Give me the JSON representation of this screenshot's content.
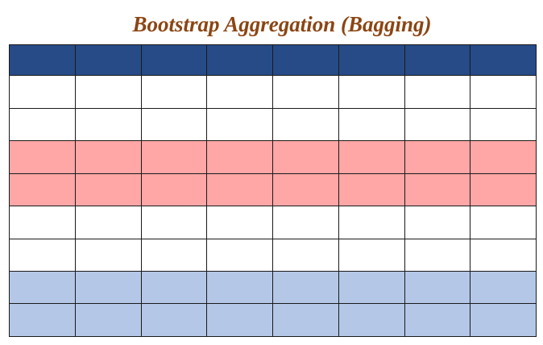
{
  "title": {
    "text": "Bootstrap Aggregation (Bagging)",
    "color": "#8B4513"
  },
  "grid": {
    "columns": 8,
    "rows": [
      {
        "role": "header",
        "color": "#264B87"
      },
      {
        "role": "blank",
        "color": "#FFFFFF"
      },
      {
        "role": "blank",
        "color": "#FFFFFF"
      },
      {
        "role": "highlight-red",
        "color": "#FFA6A6"
      },
      {
        "role": "highlight-red",
        "color": "#FFA6A6"
      },
      {
        "role": "blank",
        "color": "#FFFFFF"
      },
      {
        "role": "blank",
        "color": "#FFFFFF"
      },
      {
        "role": "highlight-blue",
        "color": "#B4C7E7"
      },
      {
        "role": "highlight-blue",
        "color": "#B4C7E7"
      }
    ]
  }
}
